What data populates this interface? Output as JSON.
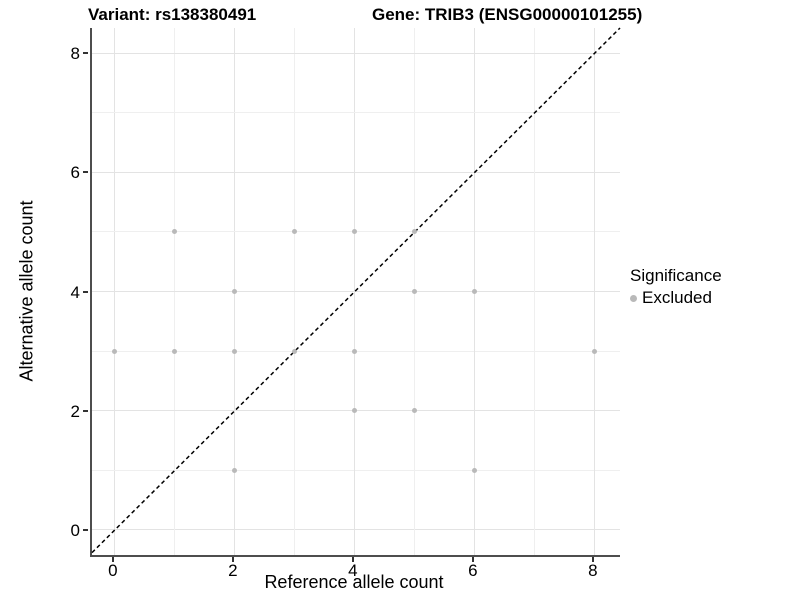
{
  "titles": {
    "variant": "Variant: rs138380491",
    "gene": "Gene: TRIB3 (ENSG00000101255)"
  },
  "chart_data": {
    "type": "scatter",
    "title_left": "Variant: rs138380491",
    "title_right": "Gene: TRIB3 (ENSG00000101255)",
    "xlabel": "Reference allele count",
    "ylabel": "Alternative allele count",
    "xticks": [
      0,
      2,
      4,
      6,
      8
    ],
    "yticks": [
      0,
      2,
      4,
      6,
      8
    ],
    "xlim": [
      -0.38,
      8.42
    ],
    "ylim": [
      -0.42,
      8.42
    ],
    "grid": {
      "major_every": 2,
      "minor_every": 1,
      "from": 0,
      "to": 8
    },
    "reference_line": {
      "equation": "y = x",
      "style": "dashed",
      "color": "#000000"
    },
    "series": [
      {
        "name": "Excluded",
        "color": "#b9b9b9",
        "points": [
          [
            0,
            3
          ],
          [
            1,
            3
          ],
          [
            1,
            5
          ],
          [
            2,
            1
          ],
          [
            2,
            3
          ],
          [
            2,
            4
          ],
          [
            3,
            3
          ],
          [
            3,
            5
          ],
          [
            4,
            2
          ],
          [
            4,
            3
          ],
          [
            4,
            5
          ],
          [
            5,
            2
          ],
          [
            5,
            4
          ],
          [
            5,
            5
          ],
          [
            6,
            1
          ],
          [
            6,
            4
          ],
          [
            8,
            3
          ]
        ]
      }
    ],
    "legend": {
      "title": "Significance",
      "position": "right",
      "items": [
        {
          "label": "Excluded",
          "color": "#b9b9b9"
        }
      ]
    },
    "colors": {
      "point": "#b9b9b9",
      "grid_major": "#e3e3e3",
      "grid_minor": "#efefef",
      "axis_line": "#4d4d4d",
      "tick_mark": "#333333",
      "text": "#000000"
    }
  }
}
